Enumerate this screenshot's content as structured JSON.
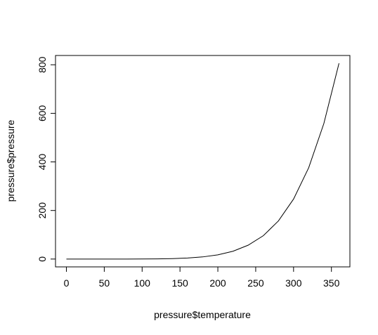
{
  "chart_data": {
    "type": "line",
    "title": "",
    "xlabel": "pressure$temperature",
    "ylabel": "pressure$pressure",
    "xlim": [
      0,
      360
    ],
    "ylim": [
      0.0002,
      806
    ],
    "x_ticks": [
      0,
      50,
      100,
      150,
      200,
      250,
      300,
      350
    ],
    "y_ticks": [
      0,
      200,
      400,
      600,
      800
    ],
    "grid": false,
    "legend": "none",
    "line_color": "#000000",
    "series": [
      {
        "x": [
          0,
          20,
          40,
          60,
          80,
          100,
          120,
          140,
          160,
          180,
          200,
          220,
          240,
          260,
          280,
          300,
          320,
          340,
          360
        ],
        "values": [
          0.0002,
          0.0012,
          0.006,
          0.03,
          0.09,
          0.27,
          0.75,
          1.85,
          4.2,
          8.8,
          17.3,
          32.1,
          57.0,
          96.0,
          157.0,
          247.0,
          376.0,
          558.0,
          806.0
        ]
      }
    ]
  }
}
